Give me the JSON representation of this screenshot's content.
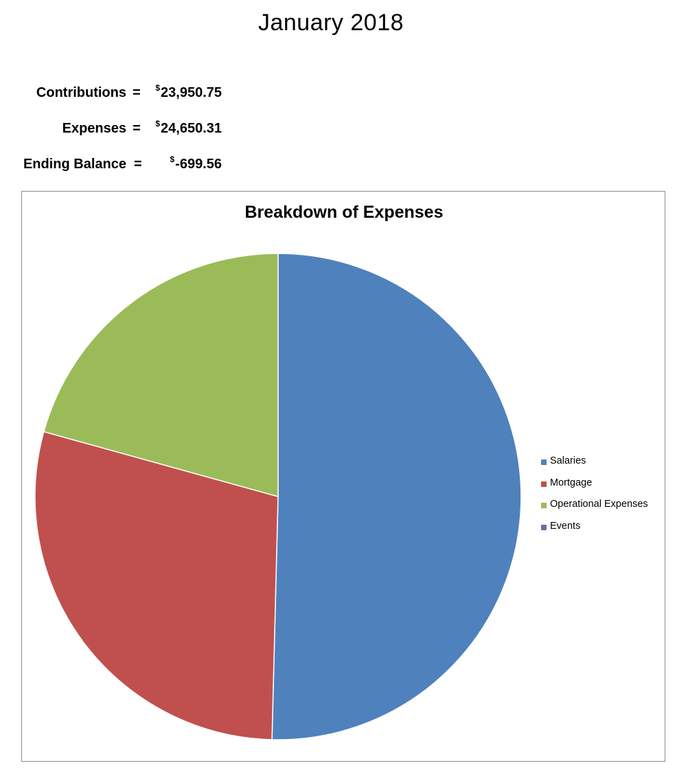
{
  "page": {
    "title": "January 2018"
  },
  "summary": [
    {
      "label": "Contributions",
      "equals": "=",
      "currency": "$",
      "value": "23,950.75"
    },
    {
      "label": "Expenses",
      "equals": "=",
      "currency": "$",
      "value": "24,650.31"
    },
    {
      "label": "Ending Balance",
      "equals": "=",
      "currency": "$",
      "value": "-699.56"
    }
  ],
  "chart_data": {
    "type": "pie",
    "title": "Breakdown of Expenses",
    "categories": [
      "Salaries",
      "Mortgage",
      "Operational Expenses",
      "Events"
    ],
    "values": [
      50.4,
      28.9,
      20.7,
      0.0
    ],
    "value_unit": "percent of total expenses (estimated)",
    "colors": [
      "#4F81BD",
      "#C0504D",
      "#9BBB59",
      "#8064A2"
    ],
    "start_angle_deg": 0,
    "direction": "clockwise",
    "legend_position": "right",
    "grid": false
  }
}
